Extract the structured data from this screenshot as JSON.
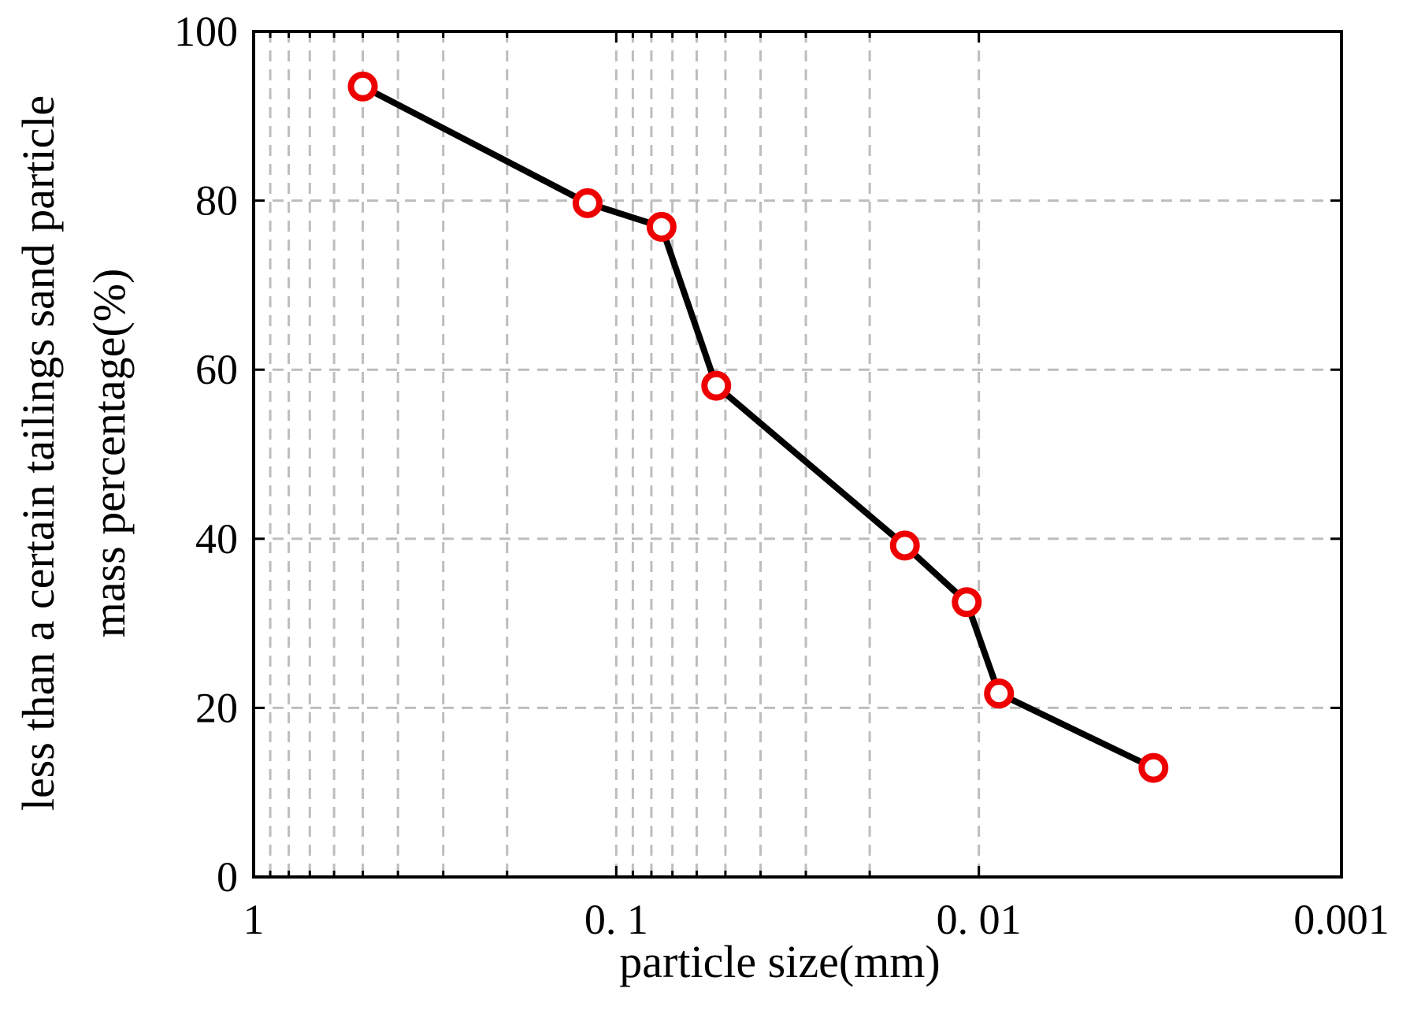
{
  "chart_data": {
    "type": "line",
    "xlabel": "particle size(mm)",
    "ylabel_lines": [
      "less than a certain tailings sand particle",
      "mass percentage(%)"
    ],
    "x_scale": "log",
    "x_reversed": true,
    "xlim": [
      1,
      0.001
    ],
    "ylim": [
      0,
      100
    ],
    "x_tick_values": [
      1,
      0.1,
      0.01,
      0.001
    ],
    "x_tick_labels": [
      "1",
      "0. 1",
      "0. 01",
      "0.001"
    ],
    "y_tick_values": [
      0,
      20,
      40,
      60,
      80,
      100
    ],
    "y_tick_labels": [
      "0",
      "20",
      "40",
      "60",
      "80",
      "100"
    ],
    "grid": true,
    "series": [
      {
        "x": [
          0.5,
          0.12,
          0.075,
          0.053,
          0.016,
          0.0108,
          0.0088,
          0.0033
        ],
        "y": [
          93.5,
          79.7,
          76.9,
          58.1,
          39.2,
          32.5,
          21.7,
          12.9
        ]
      }
    ],
    "colors": {
      "line": "#000000",
      "marker_edge": "#ee0000",
      "marker_fill": "#ffffff",
      "grid": "#bdbdbd"
    }
  }
}
